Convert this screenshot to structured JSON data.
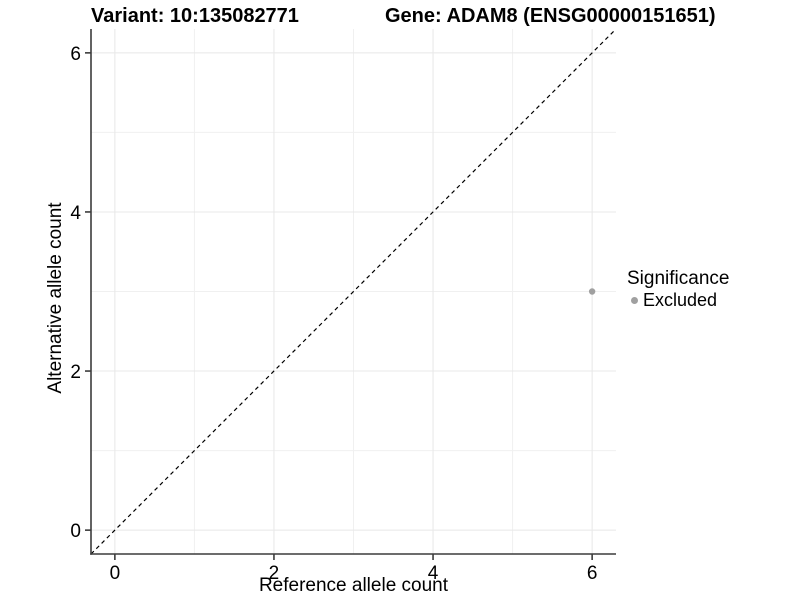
{
  "chart_data": {
    "type": "scatter",
    "titles": {
      "variant": "Variant: 10:135082771",
      "gene": "Gene: ADAM8 (ENSG00000151651)"
    },
    "xlabel": "Reference allele count",
    "ylabel": "Alternative allele count",
    "xlim": [
      -0.3,
      6.3
    ],
    "ylim": [
      -0.3,
      6.3
    ],
    "x_ticks": [
      0,
      2,
      4,
      6
    ],
    "y_ticks": [
      0,
      2,
      4,
      6
    ],
    "x_minor": [
      1,
      3,
      5
    ],
    "y_minor": [
      1,
      3,
      5
    ],
    "grid": "on",
    "identity_line": {
      "style": "dashed",
      "color": "#000000",
      "from": [
        -0.3,
        -0.3
      ],
      "to": [
        6.3,
        6.3
      ]
    },
    "series": [
      {
        "name": "Excluded",
        "color": "#a0a0a0",
        "points": [
          {
            "x": 6,
            "y": 3
          }
        ]
      }
    ],
    "legend": {
      "title": "Significance",
      "position": "right",
      "entries": [
        {
          "label": "Excluded",
          "color": "#a0a0a0"
        }
      ]
    },
    "style": {
      "background": "#ffffff",
      "axis_color": "#3c3c3c",
      "grid_major_color": "#e8e8e8",
      "grid_minor_color": "#f0f0f0",
      "tick_label_color": "#000000",
      "tick_label_size": 19
    }
  }
}
